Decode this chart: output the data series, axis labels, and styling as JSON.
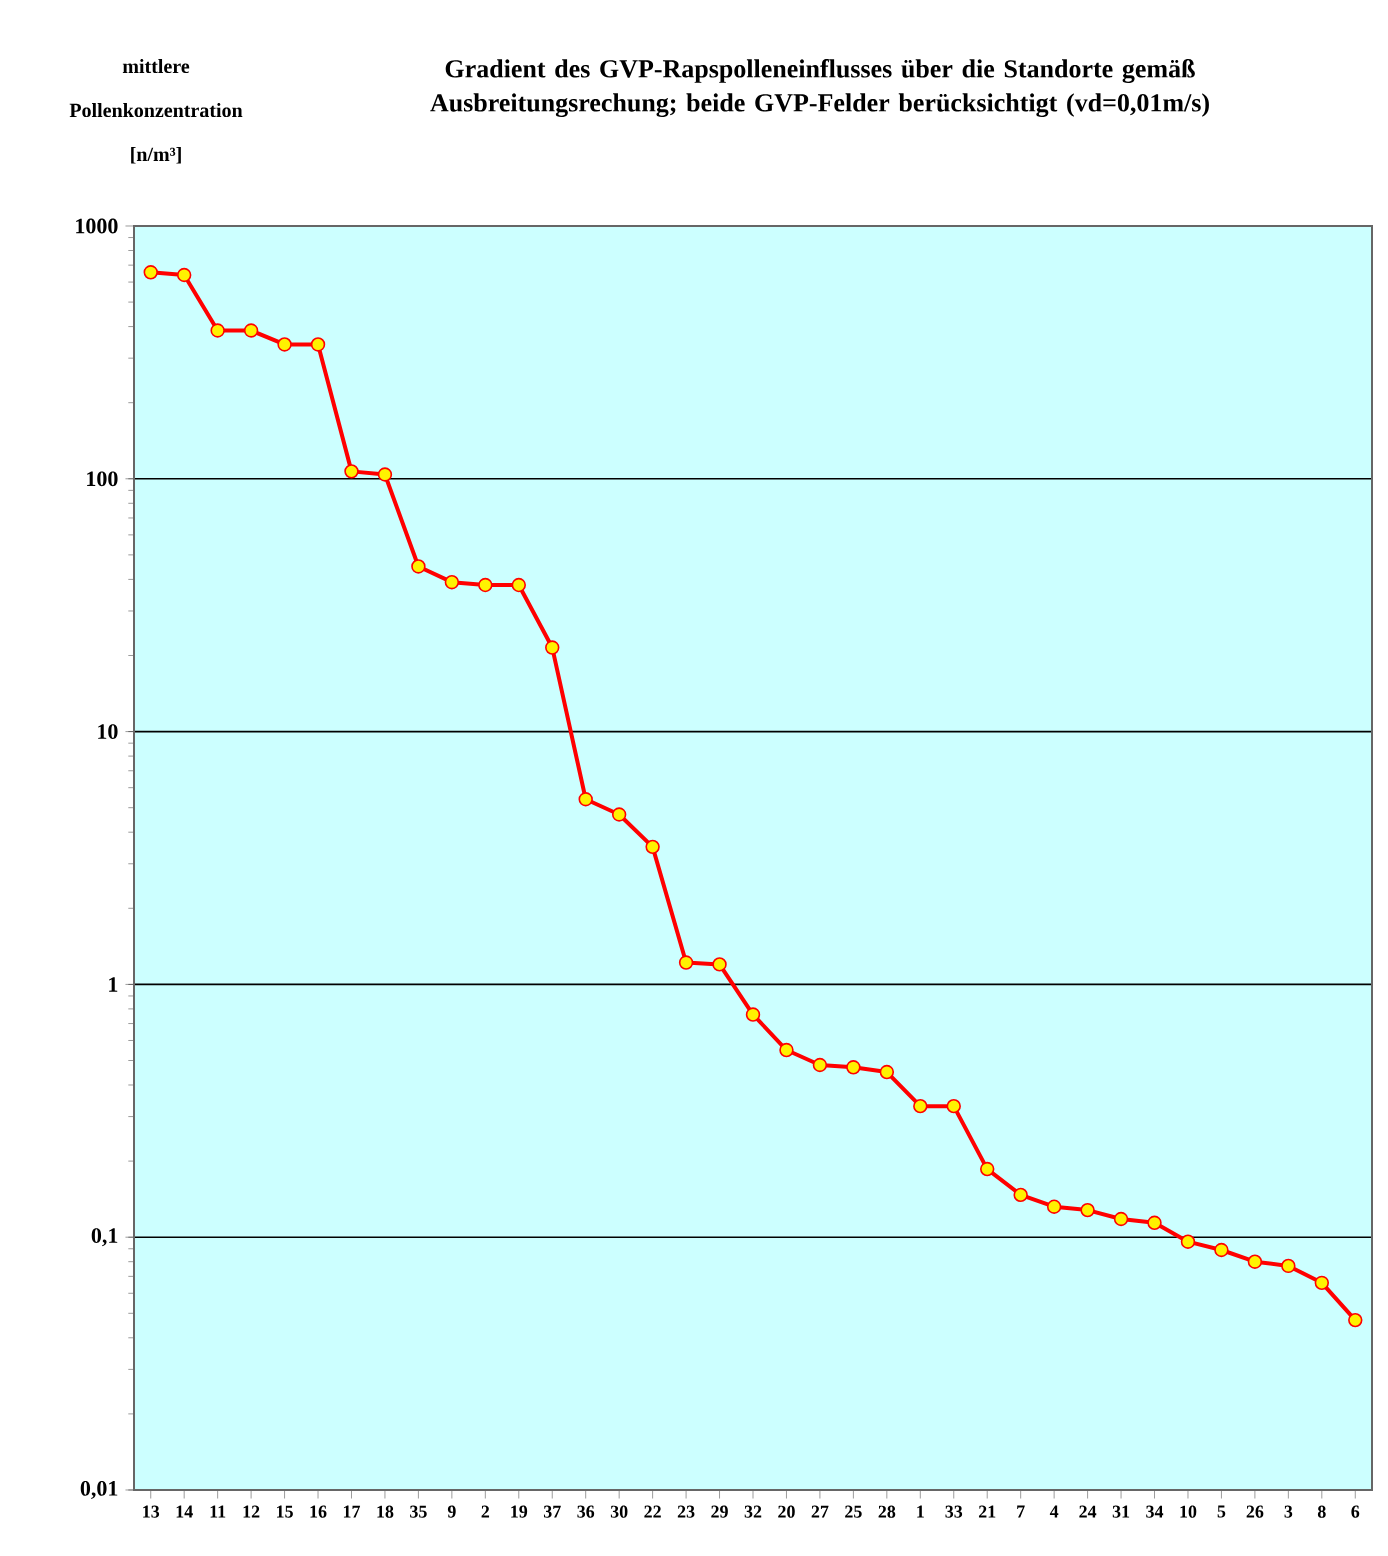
{
  "chart_data": {
    "type": "line",
    "title": "Gradient des GVP-Rapspolleneinflusses über die Standorte gemäß Ausbreitungsrechung; beide GVP-Felder berücksichtigt (vd=0,01m/s)",
    "ylabel": "mittlere Pollenkonzentration [n/m³]",
    "categories": [
      "13",
      "14",
      "11",
      "12",
      "15",
      "16",
      "17",
      "18",
      "35",
      "9",
      "2",
      "19",
      "37",
      "36",
      "30",
      "22",
      "23",
      "29",
      "32",
      "20",
      "27",
      "25",
      "28",
      "1",
      "33",
      "21",
      "7",
      "4",
      "24",
      "31",
      "34",
      "10",
      "5",
      "26",
      "3",
      "8",
      "6"
    ],
    "series": [
      {
        "color": "#ff0000",
        "values": [
          656,
          640,
          386,
          386,
          340,
          340,
          107,
          104,
          45,
          39,
          38,
          38,
          21.5,
          5.4,
          4.7,
          3.5,
          1.22,
          1.2,
          0.76,
          0.55,
          0.48,
          0.47,
          0.45,
          0.33,
          0.33,
          0.186,
          0.147,
          0.132,
          0.128,
          0.118,
          0.114,
          0.096,
          0.089,
          0.08,
          0.077,
          0.066,
          0.047
        ]
      }
    ],
    "log": "y",
    "ylim": [
      0.01,
      1000
    ],
    "yticks": [
      {
        "value": 0.01,
        "label": "0,01"
      },
      {
        "value": 0.1,
        "label": "0,1"
      },
      1,
      10,
      100,
      1000
    ],
    "grid": "y",
    "marker": "circle",
    "line_style": "solid"
  }
}
